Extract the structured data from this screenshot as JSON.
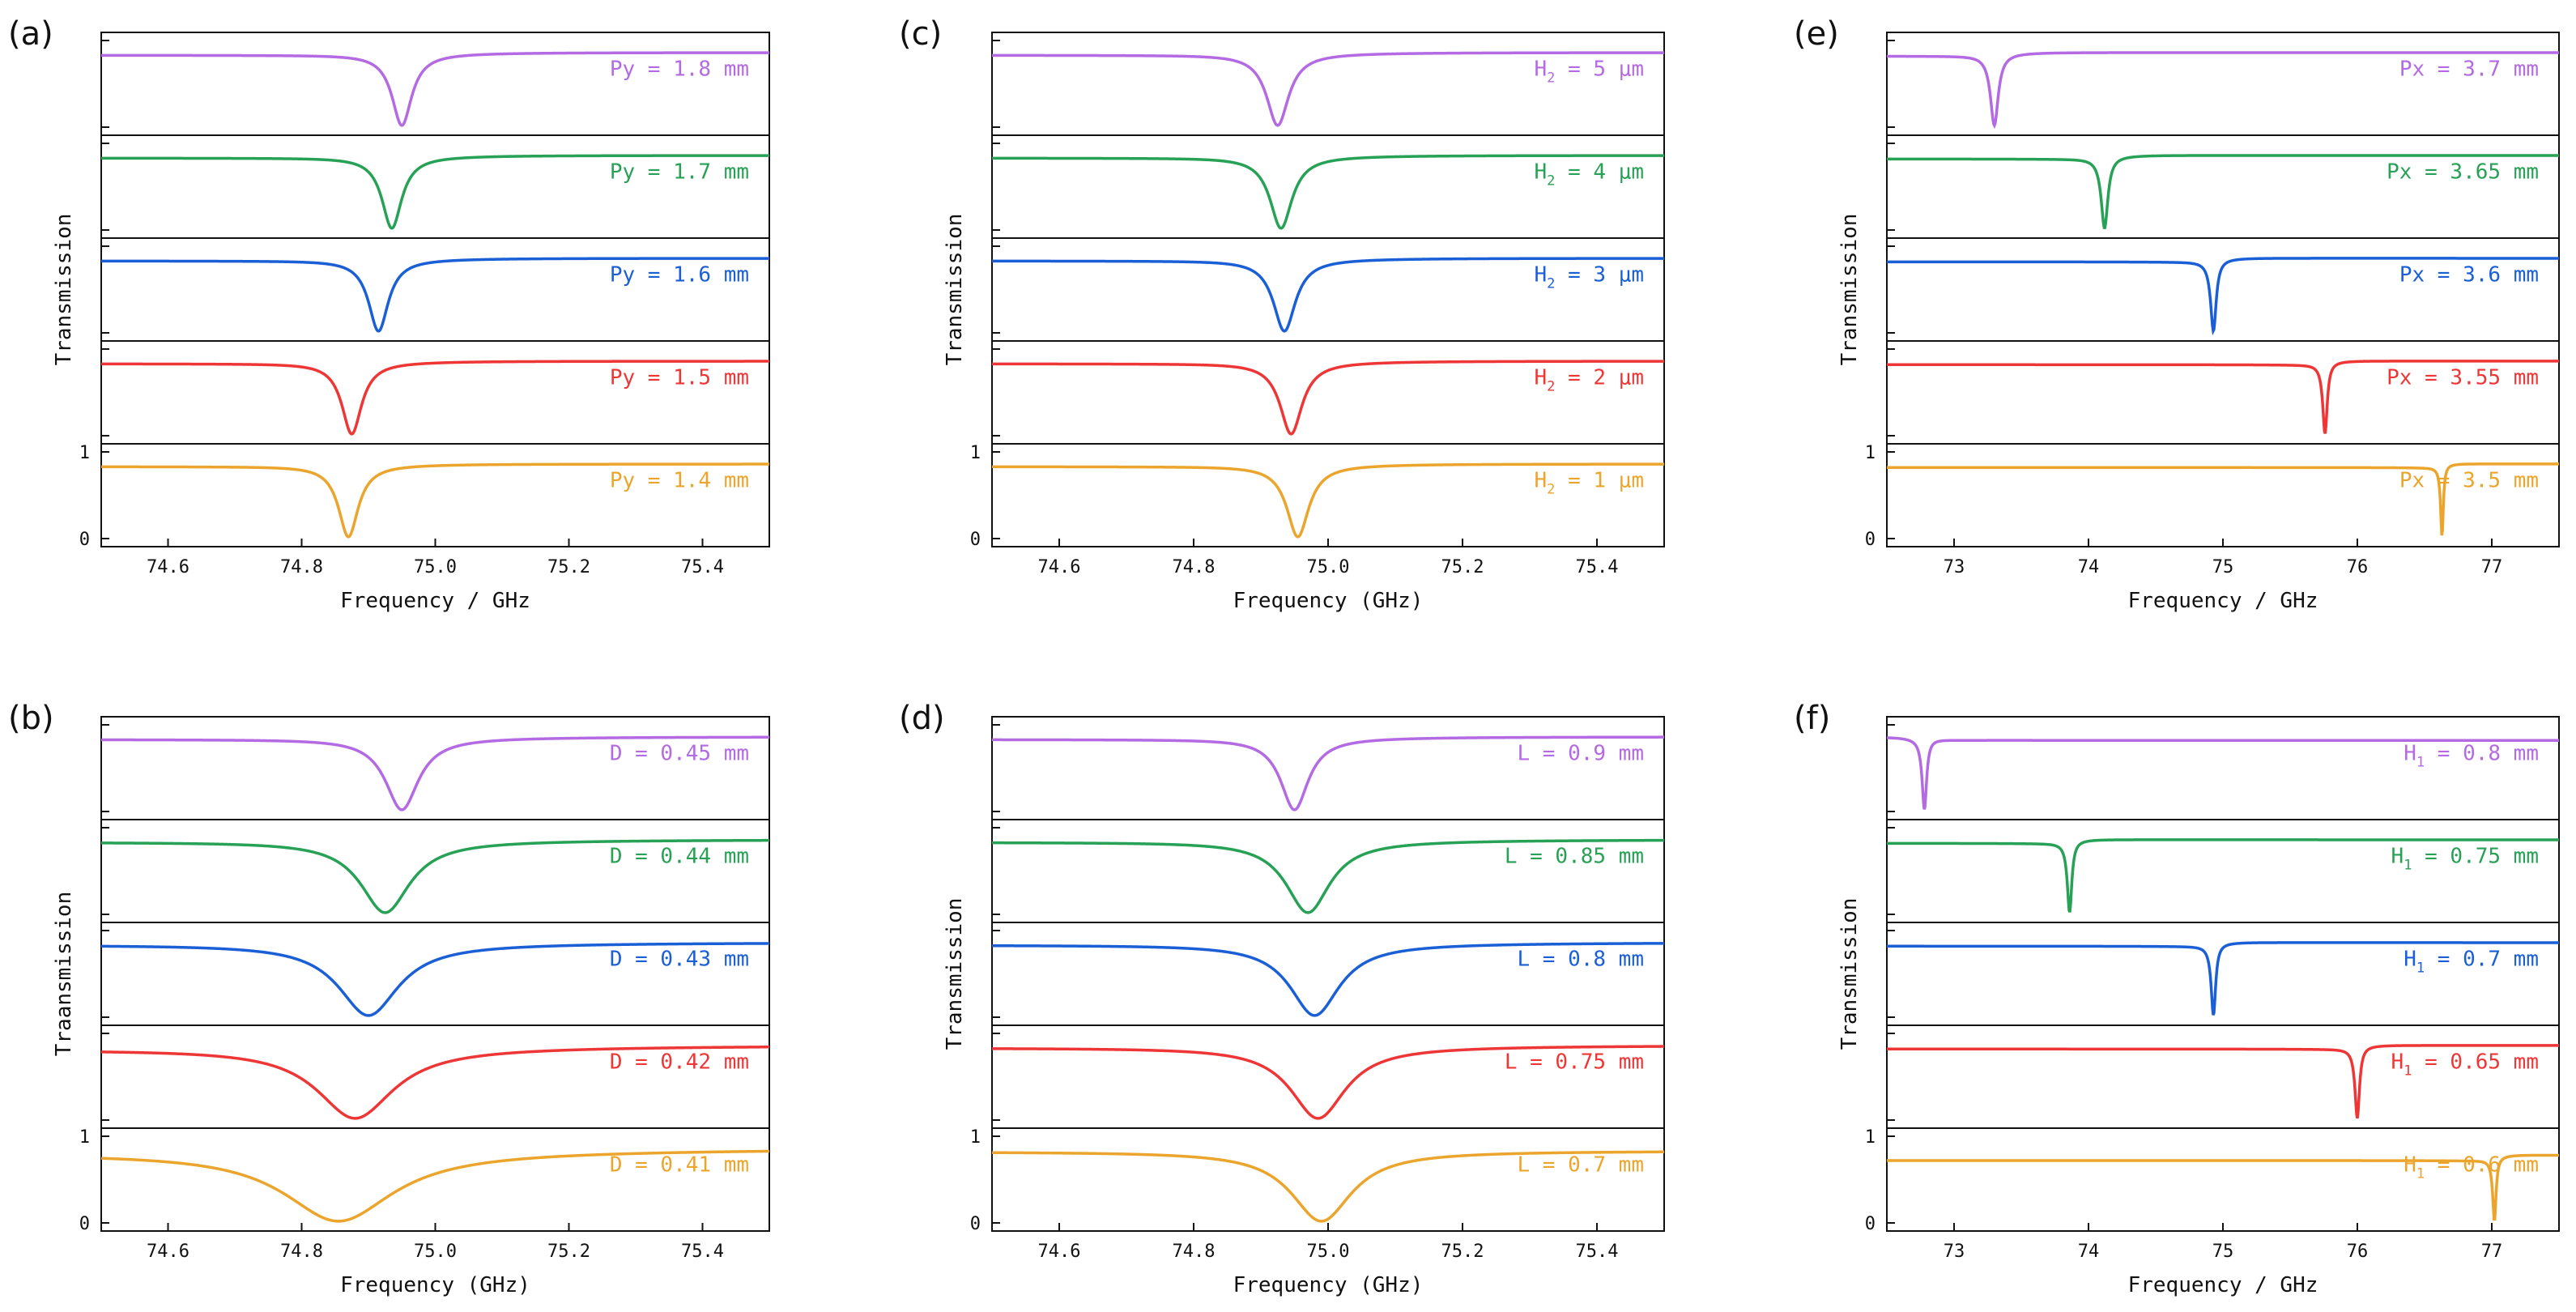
{
  "chart_data": [
    {
      "panel": "(a)",
      "type": "line",
      "xlabel": "Frequency / GHz",
      "ylabel": "Transmission",
      "xlim": [
        74.5,
        75.5
      ],
      "xticks": [
        74.6,
        74.8,
        75.0,
        75.2,
        75.4
      ],
      "xtick_labels": [
        "74.6",
        "74.8",
        "75.0",
        "75.2",
        "75.4"
      ],
      "yticks": [
        0,
        1
      ],
      "ytick_labels": [
        "0",
        "1"
      ],
      "series": [
        {
          "name": "Py = 1.8 mm",
          "color": "#b36ae2",
          "f0": 74.95,
          "width": 0.018,
          "base_left": 0.83,
          "base_right": 0.86,
          "min": 0.02,
          "fano": 0.0
        },
        {
          "name": "Py = 1.7 mm",
          "color": "#27a155",
          "f0": 74.935,
          "width": 0.018,
          "base_left": 0.83,
          "base_right": 0.86,
          "min": 0.02,
          "fano": 0.0
        },
        {
          "name": "Py = 1.6 mm",
          "color": "#1a5fd6",
          "f0": 74.915,
          "width": 0.018,
          "base_left": 0.83,
          "base_right": 0.86,
          "min": 0.02,
          "fano": 0.0
        },
        {
          "name": "Py = 1.5 mm",
          "color": "#ee3636",
          "f0": 74.875,
          "width": 0.018,
          "base_left": 0.83,
          "base_right": 0.86,
          "min": 0.02,
          "fano": 0.0
        },
        {
          "name": "Py = 1.4 mm",
          "color": "#eba52c",
          "f0": 74.87,
          "width": 0.018,
          "base_left": 0.83,
          "base_right": 0.86,
          "min": 0.02,
          "fano": 0.0
        }
      ]
    },
    {
      "panel": "(b)",
      "type": "line",
      "xlabel": "Frequency (GHz)",
      "ylabel": "Traansmission",
      "xlim": [
        74.5,
        75.5
      ],
      "xticks": [
        74.6,
        74.8,
        75.0,
        75.2,
        75.4
      ],
      "xtick_labels": [
        "74.6",
        "74.8",
        "75.0",
        "75.2",
        "75.4"
      ],
      "yticks": [
        0,
        1
      ],
      "ytick_labels": [
        "0",
        "1"
      ],
      "series": [
        {
          "name": "D = 0.45 mm",
          "color": "#b36ae2",
          "f0": 74.95,
          "width": 0.03,
          "base_left": 0.83,
          "base_right": 0.86,
          "min": 0.02,
          "fano": 0.0
        },
        {
          "name": "D = 0.44 mm",
          "color": "#27a155",
          "f0": 74.925,
          "width": 0.045,
          "base_left": 0.83,
          "base_right": 0.86,
          "min": 0.02,
          "fano": 0.0
        },
        {
          "name": "D = 0.43 mm",
          "color": "#1a5fd6",
          "f0": 74.9,
          "width": 0.055,
          "base_left": 0.83,
          "base_right": 0.86,
          "min": 0.02,
          "fano": 0.0
        },
        {
          "name": "D = 0.42 mm",
          "color": "#ee3636",
          "f0": 74.88,
          "width": 0.07,
          "base_left": 0.8,
          "base_right": 0.86,
          "min": 0.02,
          "fano": 0.0
        },
        {
          "name": "D = 0.41 mm",
          "color": "#eba52c",
          "f0": 74.855,
          "width": 0.1,
          "base_left": 0.78,
          "base_right": 0.86,
          "min": 0.02,
          "fano": 0.0
        }
      ]
    },
    {
      "panel": "(c)",
      "type": "line",
      "xlabel": "Frequency (GHz)",
      "ylabel": "Transmission",
      "xlim": [
        74.5,
        75.5
      ],
      "xticks": [
        74.6,
        74.8,
        75.0,
        75.2,
        75.4
      ],
      "xtick_labels": [
        "74.6",
        "74.8",
        "75.0",
        "75.2",
        "75.4"
      ],
      "yticks": [
        0,
        1
      ],
      "ytick_labels": [
        "0",
        "1"
      ],
      "series": [
        {
          "name": "H2 = 5 μm",
          "main": "H",
          "sub": "2",
          "rest": " = 5 μm",
          "color": "#b36ae2",
          "f0": 74.925,
          "width": 0.02,
          "base_left": 0.83,
          "base_right": 0.86,
          "min": 0.02,
          "fano": 0.0
        },
        {
          "name": "H2 = 4 μm",
          "main": "H",
          "sub": "2",
          "rest": " = 4 μm",
          "color": "#27a155",
          "f0": 74.93,
          "width": 0.02,
          "base_left": 0.83,
          "base_right": 0.86,
          "min": 0.02,
          "fano": 0.0
        },
        {
          "name": "H2 = 3 μm",
          "main": "H",
          "sub": "2",
          "rest": " = 3 μm",
          "color": "#1a5fd6",
          "f0": 74.935,
          "width": 0.02,
          "base_left": 0.83,
          "base_right": 0.86,
          "min": 0.02,
          "fano": 0.0
        },
        {
          "name": "H2 = 2 μm",
          "main": "H",
          "sub": "2",
          "rest": " = 2 μm",
          "color": "#ee3636",
          "f0": 74.945,
          "width": 0.02,
          "base_left": 0.83,
          "base_right": 0.86,
          "min": 0.02,
          "fano": 0.0
        },
        {
          "name": "H2 = 1 μm",
          "main": "H",
          "sub": "2",
          "rest": " = 1 μm",
          "color": "#eba52c",
          "f0": 74.955,
          "width": 0.02,
          "base_left": 0.83,
          "base_right": 0.86,
          "min": 0.02,
          "fano": 0.0
        }
      ]
    },
    {
      "panel": "(d)",
      "type": "line",
      "xlabel": "Frequency (GHz)",
      "ylabel": "Transmission",
      "xlim": [
        74.5,
        75.5
      ],
      "xticks": [
        74.6,
        74.8,
        75.0,
        75.2,
        75.4
      ],
      "xtick_labels": [
        "74.6",
        "74.8",
        "75.0",
        "75.2",
        "75.4"
      ],
      "yticks": [
        0,
        1
      ],
      "ytick_labels": [
        "0",
        "1"
      ],
      "series": [
        {
          "name": "L = 0.9 mm",
          "color": "#b36ae2",
          "f0": 74.95,
          "width": 0.025,
          "base_left": 0.83,
          "base_right": 0.86,
          "min": 0.02,
          "fano": 0.0
        },
        {
          "name": "L = 0.85 mm",
          "color": "#27a155",
          "f0": 74.97,
          "width": 0.04,
          "base_left": 0.83,
          "base_right": 0.86,
          "min": 0.02,
          "fano": 0.0
        },
        {
          "name": "L = 0.8 mm",
          "color": "#1a5fd6",
          "f0": 74.98,
          "width": 0.045,
          "base_left": 0.83,
          "base_right": 0.86,
          "min": 0.02,
          "fano": 0.0
        },
        {
          "name": "L = 0.75 mm",
          "color": "#ee3636",
          "f0": 74.985,
          "width": 0.05,
          "base_left": 0.83,
          "base_right": 0.86,
          "min": 0.02,
          "fano": 0.0
        },
        {
          "name": "L = 0.7 mm",
          "color": "#eba52c",
          "f0": 74.99,
          "width": 0.055,
          "base_left": 0.82,
          "base_right": 0.83,
          "min": 0.02,
          "fano": 0.0
        }
      ]
    },
    {
      "panel": "(e)",
      "type": "line",
      "xlabel": "Frequency / GHz",
      "ylabel": "Transmission",
      "xlim": [
        72.5,
        77.5
      ],
      "xticks": [
        73,
        74,
        75,
        76,
        77
      ],
      "xtick_labels": [
        "73",
        "74",
        "75",
        "76",
        "77"
      ],
      "yticks": [
        0,
        1
      ],
      "ytick_labels": [
        "0",
        "1"
      ],
      "series": [
        {
          "name": "Px = 3.7 mm",
          "color": "#b36ae2",
          "f0": 73.3,
          "width": 0.035,
          "base_left": 0.82,
          "base_right": 0.86,
          "min": 0.02,
          "fano": 0.3
        },
        {
          "name": "Px = 3.65 mm",
          "color": "#27a155",
          "f0": 74.12,
          "width": 0.03,
          "base_left": 0.82,
          "base_right": 0.86,
          "min": 0.02,
          "fano": 0.5
        },
        {
          "name": "Px = 3.6 mm",
          "color": "#1a5fd6",
          "f0": 74.93,
          "width": 0.025,
          "base_left": 0.82,
          "base_right": 0.86,
          "min": 0.02,
          "fano": 0.7
        },
        {
          "name": "Px = 3.55 mm",
          "color": "#ee3636",
          "f0": 75.76,
          "width": 0.02,
          "base_left": 0.82,
          "base_right": 0.86,
          "min": 0.02,
          "fano": 0.8
        },
        {
          "name": "Px = 3.5 mm",
          "color": "#eba52c",
          "f0": 76.63,
          "width": 0.012,
          "base_left": 0.82,
          "base_right": 0.86,
          "min": 0.02,
          "fano": 0.9
        }
      ]
    },
    {
      "panel": "(f)",
      "type": "line",
      "xlabel": "Frequency / GHz",
      "ylabel": "Transmission",
      "xlim": [
        72.5,
        77.5
      ],
      "xticks": [
        73,
        74,
        75,
        76,
        77
      ],
      "xtick_labels": [
        "73",
        "74",
        "75",
        "76",
        "77"
      ],
      "yticks": [
        0,
        1
      ],
      "ytick_labels": [
        "0",
        "1"
      ],
      "series": [
        {
          "name": "H1 = 0.8 mm",
          "main": "H",
          "sub": "1",
          "rest": " = 0.8 mm",
          "color": "#b36ae2",
          "f0": 72.78,
          "width": 0.02,
          "base_left": 0.86,
          "base_right": 0.82,
          "min": 0.02,
          "fano": 0.8
        },
        {
          "name": "H1 = 0.75 mm",
          "main": "H",
          "sub": "1",
          "rest": " = 0.75 mm",
          "color": "#27a155",
          "f0": 73.86,
          "width": 0.02,
          "base_left": 0.82,
          "base_right": 0.86,
          "min": 0.02,
          "fano": 0.8
        },
        {
          "name": "H1 = 0.7 mm",
          "main": "H",
          "sub": "1",
          "rest": " = 0.7 mm",
          "color": "#1a5fd6",
          "f0": 74.93,
          "width": 0.02,
          "base_left": 0.82,
          "base_right": 0.86,
          "min": 0.02,
          "fano": 0.8
        },
        {
          "name": "H1 = 0.65 mm",
          "main": "H",
          "sub": "1",
          "rest": " = 0.65 mm",
          "color": "#ee3636",
          "f0": 76.0,
          "width": 0.02,
          "base_left": 0.82,
          "base_right": 0.86,
          "min": 0.02,
          "fano": 0.8
        },
        {
          "name": "H1 = 0.6 mm",
          "main": "H",
          "sub": "1",
          "rest": " = 0.6 mm",
          "color": "#eba52c",
          "f0": 77.02,
          "width": 0.015,
          "base_left": 0.72,
          "base_right": 0.78,
          "min": 0.02,
          "fano": 0.9
        }
      ]
    }
  ]
}
